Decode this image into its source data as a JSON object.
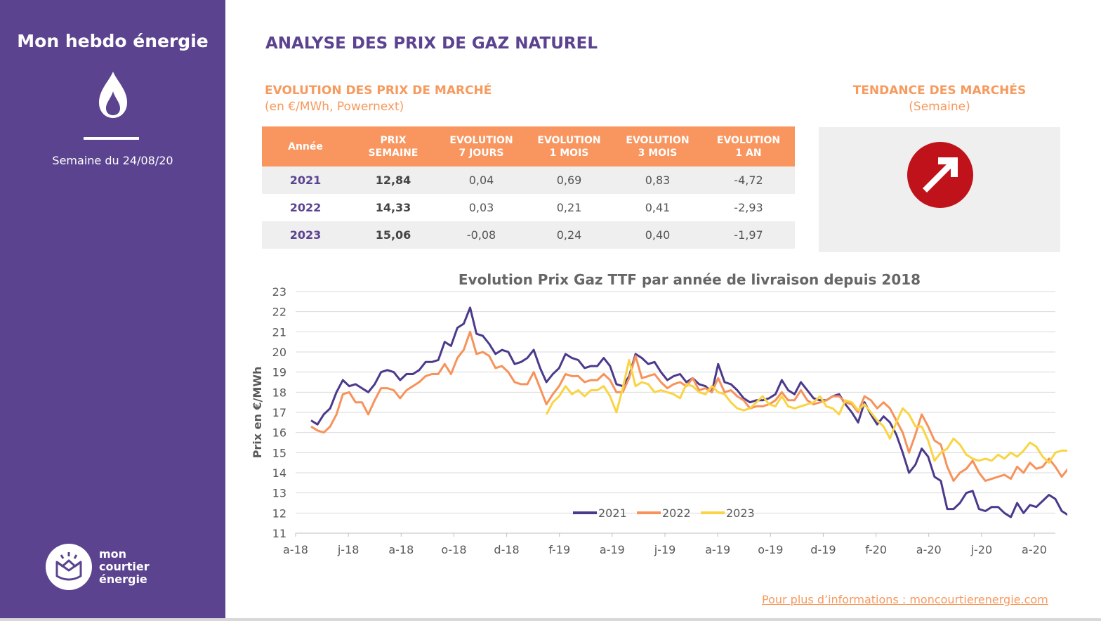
{
  "sidebar": {
    "title": "Mon hebdo énergie",
    "week": "Semaine du 24/08/20",
    "logo_lines": [
      "mon",
      "courtier",
      "énergie"
    ],
    "icon": "flame-icon",
    "bg_color": "#5b4390"
  },
  "header": {
    "title": "ANALYSE DES PRIX DE GAZ NATUREL",
    "market_title": "EVOLUTION DES PRIX DE MARCHÉ",
    "market_subtitle": "(en €/MWh, Powernext)",
    "trend_title": "TENDANCE DES MARCHÉS",
    "trend_subtitle": "(Semaine)"
  },
  "table": {
    "headers": [
      [
        "Année"
      ],
      [
        "PRIX",
        "SEMAINE"
      ],
      [
        "EVOLUTION",
        "7 JOURS"
      ],
      [
        "EVOLUTION",
        "1 MOIS"
      ],
      [
        "EVOLUTION",
        "3 MOIS"
      ],
      [
        "EVOLUTION",
        "1 AN"
      ]
    ],
    "rows": [
      [
        "2021",
        "12,84",
        "0,04",
        "0,69",
        "0,83",
        "-4,72"
      ],
      [
        "2022",
        "14,33",
        "0,03",
        "0,21",
        "0,41",
        "-2,93"
      ],
      [
        "2023",
        "15,06",
        "-0,08",
        "0,24",
        "0,40",
        "-1,97"
      ]
    ],
    "header_color": "#f9955e"
  },
  "trend": {
    "icon": "arrow-up-right-icon",
    "direction": "up",
    "color": "#c0121a"
  },
  "footer": {
    "link": "Pour plus d’informations : moncourtierenergie.com"
  },
  "chart_data": {
    "type": "line",
    "title": "Evolution Prix Gaz TTF par année de livraison depuis 2018",
    "ylabel": "Prix en €/MWh",
    "xlabel": "",
    "ylim": [
      11,
      23
    ],
    "yticks": [
      11,
      12,
      13,
      14,
      15,
      16,
      17,
      18,
      19,
      20,
      21,
      22,
      23
    ],
    "xtick_labels": [
      "a-18",
      "j-18",
      "a-18",
      "o-18",
      "d-18",
      "f-19",
      "a-19",
      "j-19",
      "a-19",
      "o-19",
      "d-19",
      "f-20",
      "a-20",
      "j-20",
      "a-20"
    ],
    "x_count": 118,
    "grid": true,
    "legend": "bottom-center",
    "series": [
      {
        "name": "2021",
        "color": "#4b3a8c",
        "start": 0,
        "values": [
          16.6,
          16.4,
          16.9,
          17.2,
          18.0,
          18.6,
          18.3,
          18.4,
          18.2,
          18.0,
          18.4,
          19.0,
          19.1,
          19.0,
          18.6,
          18.9,
          18.9,
          19.1,
          19.5,
          19.5,
          19.6,
          20.5,
          20.3,
          21.2,
          21.4,
          22.2,
          20.9,
          20.8,
          20.4,
          19.9,
          20.1,
          20.0,
          19.4,
          19.5,
          19.7,
          20.1,
          19.2,
          18.5,
          18.9,
          19.2,
          19.9,
          19.7,
          19.6,
          19.2,
          19.3,
          19.3,
          19.7,
          19.3,
          18.4,
          18.3,
          18.8,
          19.9,
          19.7,
          19.4,
          19.5,
          19.0,
          18.6,
          18.8,
          18.9,
          18.5,
          18.7,
          18.4,
          18.3,
          18.0,
          19.4,
          18.5,
          18.4,
          18.1,
          17.7,
          17.5,
          17.6,
          17.6,
          17.7,
          17.9,
          18.6,
          18.1,
          17.9,
          18.5,
          18.1,
          17.7,
          17.6,
          17.6,
          17.8,
          17.9,
          17.4,
          17.0,
          16.5,
          17.5,
          16.9,
          16.4,
          16.8,
          16.5,
          15.9,
          15.0,
          14.0,
          14.4,
          15.2,
          14.8,
          13.8,
          13.6,
          12.2,
          12.2,
          12.5,
          13.0,
          13.1,
          12.2,
          12.1,
          12.3,
          12.3,
          12.0,
          11.8,
          12.5,
          12.0,
          12.4,
          12.3,
          12.6,
          12.9,
          12.7,
          12.1,
          11.9,
          12.7,
          12.8,
          12.8
        ]
      },
      {
        "name": "2022",
        "color": "#f7925a",
        "start": 0,
        "values": [
          16.3,
          16.1,
          16.0,
          16.3,
          16.9,
          17.9,
          18.0,
          17.5,
          17.5,
          16.9,
          17.6,
          18.2,
          18.2,
          18.1,
          17.7,
          18.1,
          18.3,
          18.5,
          18.8,
          18.9,
          18.9,
          19.4,
          18.9,
          19.7,
          20.1,
          21.0,
          19.9,
          20.0,
          19.8,
          19.2,
          19.3,
          19.0,
          18.5,
          18.4,
          18.4,
          19.0,
          18.2,
          17.4,
          17.9,
          18.3,
          18.9,
          18.8,
          18.8,
          18.5,
          18.6,
          18.6,
          18.9,
          18.6,
          18.0,
          18.0,
          18.7,
          19.8,
          18.7,
          18.8,
          18.9,
          18.5,
          18.2,
          18.4,
          18.5,
          18.3,
          18.7,
          18.1,
          18.2,
          18.0,
          18.7,
          18.0,
          18.1,
          17.8,
          17.6,
          17.2,
          17.3,
          17.3,
          17.4,
          17.6,
          18.0,
          17.6,
          17.6,
          18.1,
          17.6,
          17.4,
          17.5,
          17.6,
          17.8,
          17.8,
          17.5,
          17.4,
          17.0,
          17.8,
          17.6,
          17.2,
          17.5,
          17.2,
          16.6,
          16.0,
          15.0,
          15.9,
          16.9,
          16.3,
          15.6,
          15.4,
          14.3,
          13.6,
          14.0,
          14.2,
          14.6,
          14.0,
          13.6,
          13.7,
          13.8,
          13.9,
          13.7,
          14.3,
          14.0,
          14.5,
          14.2,
          14.3,
          14.7,
          14.3,
          13.8,
          14.2,
          14.3,
          14.3
        ]
      },
      {
        "name": "2023",
        "color": "#f9d444",
        "start": 37,
        "values": [
          16.9,
          17.5,
          17.8,
          18.3,
          17.9,
          18.1,
          17.8,
          18.1,
          18.1,
          18.3,
          17.8,
          17.0,
          18.2,
          19.6,
          18.3,
          18.5,
          18.4,
          18.0,
          18.1,
          18.0,
          17.9,
          17.7,
          18.4,
          18.3,
          18.0,
          17.9,
          18.3,
          18.0,
          17.9,
          17.5,
          17.2,
          17.1,
          17.2,
          17.5,
          17.8,
          17.4,
          17.3,
          17.8,
          17.3,
          17.2,
          17.3,
          17.4,
          17.5,
          17.8,
          17.3,
          17.2,
          16.9,
          17.6,
          17.5,
          17.1,
          17.4,
          17.0,
          16.6,
          16.3,
          15.7,
          16.5,
          17.2,
          16.9,
          16.3,
          16.3,
          15.6,
          14.6,
          15.0,
          15.2,
          15.7,
          15.4,
          14.9,
          14.7,
          14.6,
          14.7,
          14.6,
          14.9,
          14.7,
          15.0,
          14.8,
          15.1,
          15.5,
          15.3,
          14.8,
          14.5,
          15.0,
          15.1,
          15.1
        ]
      }
    ]
  }
}
